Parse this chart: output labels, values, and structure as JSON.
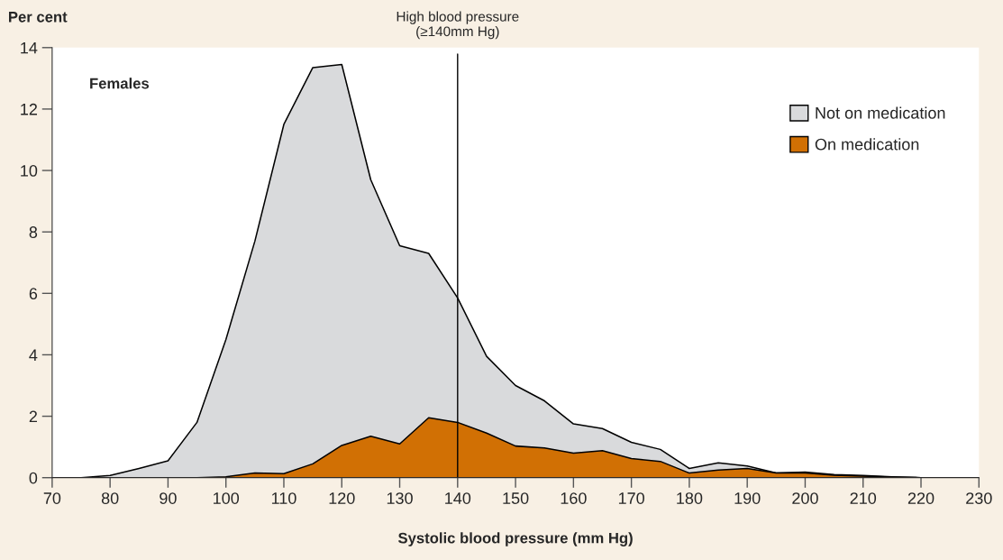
{
  "chart_data": {
    "type": "area",
    "ylabel": "Per cent",
    "xlabel": "Systolic blood pressure (mm Hg)",
    "annotations": [
      "Females"
    ],
    "x": [
      70,
      75,
      80,
      85,
      90,
      95,
      100,
      105,
      110,
      115,
      120,
      125,
      130,
      135,
      140,
      145,
      150,
      155,
      160,
      165,
      170,
      175,
      180,
      185,
      190,
      195,
      200,
      205,
      210,
      215,
      220,
      225,
      230
    ],
    "series": [
      {
        "name": "Not on medication",
        "color": "#d9dadc",
        "values": [
          0,
          0,
          0.07,
          0.3,
          0.55,
          1.8,
          4.5,
          7.7,
          11.5,
          13.35,
          13.45,
          9.7,
          7.55,
          7.3,
          5.85,
          3.95,
          3.0,
          2.5,
          1.75,
          1.6,
          1.15,
          0.92,
          0.3,
          0.48,
          0.38,
          0.15,
          0.18,
          0.1,
          0.07,
          0.03,
          0,
          0,
          0
        ]
      },
      {
        "name": "On medication",
        "color": "#d17004",
        "values": [
          0,
          0,
          0,
          0,
          0,
          0,
          0.03,
          0.15,
          0.13,
          0.45,
          1.05,
          1.35,
          1.1,
          1.95,
          1.8,
          1.45,
          1.03,
          0.97,
          0.8,
          0.88,
          0.62,
          0.53,
          0.15,
          0.25,
          0.3,
          0.15,
          0.15,
          0.08,
          0.05,
          0.02,
          0,
          0,
          0
        ]
      }
    ],
    "xlim": [
      70,
      230
    ],
    "xticks": [
      70,
      80,
      90,
      100,
      110,
      120,
      130,
      140,
      150,
      160,
      170,
      180,
      190,
      200,
      210,
      220,
      230
    ],
    "ylim": [
      0,
      14
    ],
    "yticks": [
      0,
      2,
      4,
      6,
      8,
      10,
      12,
      14
    ],
    "ref_lines": [
      {
        "axis": "x",
        "value": 140,
        "label": "High blood pressure\n(≥140mm Hg)",
        "color": "#000000"
      }
    ],
    "legend": "top right",
    "grid": false
  }
}
